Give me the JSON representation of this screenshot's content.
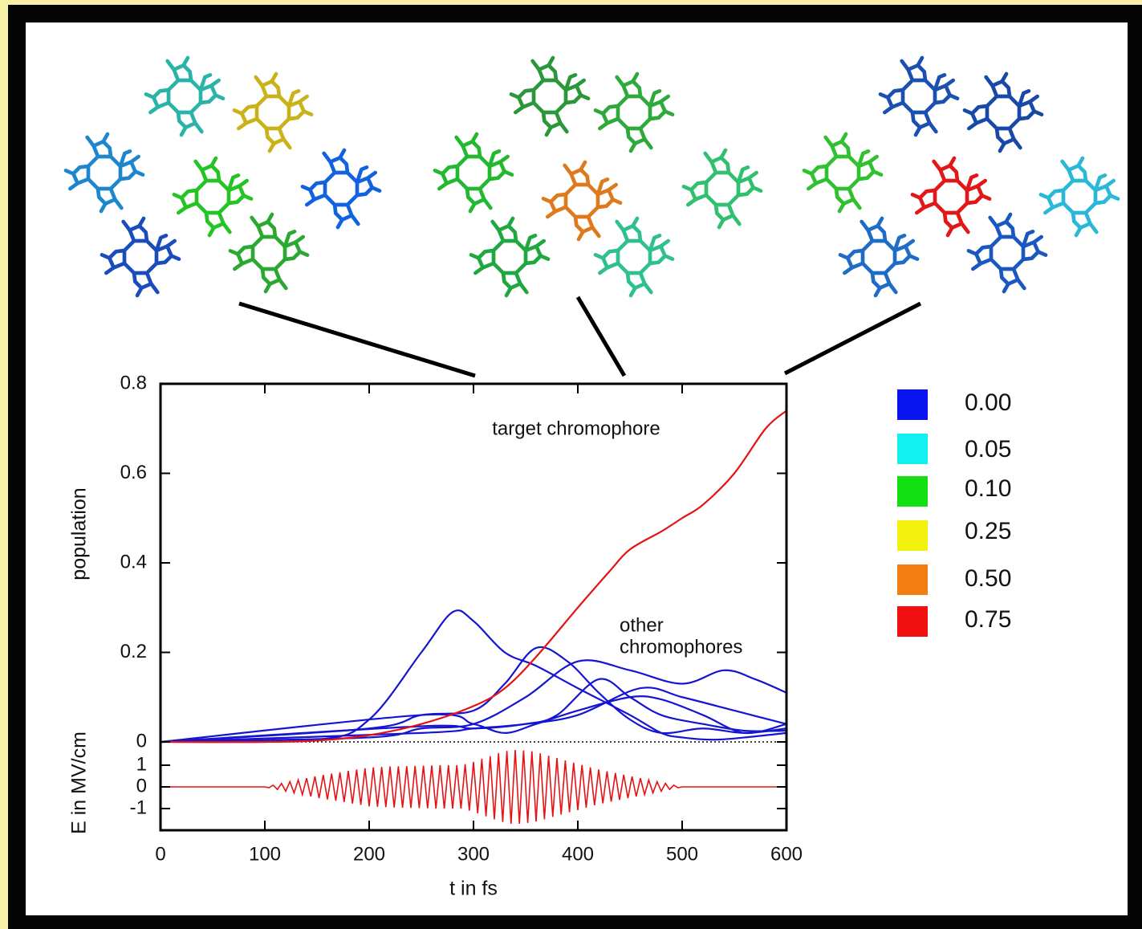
{
  "chart_data": [
    {
      "type": "line",
      "ylabel": "population",
      "xlim": [
        0,
        600
      ],
      "ylim": [
        0,
        0.8
      ],
      "yticks": [
        0,
        0.2,
        0.4,
        0.6,
        0.8
      ],
      "annotations": [
        {
          "lines": [
            "target chromophore"
          ]
        },
        {
          "lines": [
            "other",
            "chromophores"
          ]
        }
      ],
      "color_scale": [
        {
          "value": 0,
          "label": "0.00",
          "color": "#0a14f0"
        },
        {
          "value": 0.05,
          "label": "0.05",
          "color": "#12f0f0"
        },
        {
          "value": 0.1,
          "label": "0.10",
          "color": "#12e012"
        },
        {
          "value": 0.25,
          "label": "0.25",
          "color": "#f2f20e"
        },
        {
          "value": 0.5,
          "label": "0.50",
          "color": "#f27e12"
        },
        {
          "value": 0.75,
          "label": "0.75",
          "color": "#f01010"
        }
      ],
      "series": [
        {
          "color": "#1414d2",
          "x": [
            0,
            150,
            200,
            250,
            280,
            300,
            330,
            360,
            400,
            450,
            480,
            500,
            530,
            560,
            600
          ],
          "values": [
            0,
            0.005,
            0.05,
            0.2,
            0.29,
            0.27,
            0.2,
            0.17,
            0.12,
            0.06,
            0.02,
            0.01,
            0.005,
            0.01,
            0.02
          ]
        },
        {
          "color": "#1414d2",
          "x": [
            0,
            200,
            250,
            300,
            330,
            360,
            390,
            420,
            450,
            480,
            520,
            560,
            600
          ],
          "values": [
            0,
            0.03,
            0.06,
            0.07,
            0.13,
            0.21,
            0.18,
            0.11,
            0.05,
            0.02,
            0.03,
            0.02,
            0.03
          ]
        },
        {
          "color": "#1414d2",
          "x": [
            0,
            200,
            250,
            300,
            350,
            400,
            450,
            500,
            540,
            570,
            600
          ],
          "values": [
            0,
            0.01,
            0.03,
            0.04,
            0.1,
            0.18,
            0.16,
            0.13,
            0.16,
            0.14,
            0.11
          ]
        },
        {
          "color": "#1414d2",
          "x": [
            0,
            250,
            300,
            350,
            380,
            420,
            450,
            480,
            520,
            560,
            600
          ],
          "values": [
            0,
            0.035,
            0.03,
            0.04,
            0.06,
            0.14,
            0.1,
            0.06,
            0.04,
            0.025,
            0.025
          ]
        },
        {
          "color": "#1414d2",
          "x": [
            0,
            250,
            300,
            330,
            360,
            400,
            450,
            480,
            520,
            560,
            600
          ],
          "values": [
            0,
            0.06,
            0.04,
            0.02,
            0.04,
            0.07,
            0.1,
            0.095,
            0.06,
            0.02,
            0.04
          ]
        },
        {
          "color": "#1414d2",
          "x": [
            0,
            250,
            300,
            350,
            400,
            460,
            500,
            550,
            600
          ],
          "values": [
            0,
            0.02,
            0.03,
            0.04,
            0.06,
            0.12,
            0.1,
            0.07,
            0.04
          ]
        },
        {
          "color": "#e41414",
          "x": [
            0,
            100,
            150,
            200,
            250,
            300,
            330,
            360,
            400,
            430,
            450,
            480,
            500,
            520,
            550,
            580,
            600
          ],
          "values": [
            0,
            0,
            0.003,
            0.015,
            0.04,
            0.08,
            0.12,
            0.19,
            0.3,
            0.38,
            0.43,
            0.47,
            0.5,
            0.53,
            0.6,
            0.7,
            0.74
          ]
        }
      ]
    },
    {
      "type": "line",
      "xlabel": "t in fs",
      "ylabel": "E in MV/cm",
      "xlim": [
        0,
        600
      ],
      "xticks": [
        0,
        100,
        200,
        300,
        400,
        500,
        600
      ],
      "ylim": [
        -2,
        2
      ],
      "yticks": [
        -1,
        0,
        1
      ],
      "series": [
        {
          "color": "#e41414",
          "x": [
            0,
            100,
            104,
            108,
            112,
            116,
            120,
            124,
            128,
            132,
            136,
            140,
            144,
            148,
            152,
            156,
            160,
            164,
            168,
            172,
            176,
            180,
            184,
            188,
            192,
            196,
            200,
            204,
            208,
            212,
            216,
            220,
            224,
            228,
            232,
            236,
            240,
            244,
            248,
            252,
            256,
            260,
            264,
            268,
            272,
            276,
            280,
            284,
            288,
            292,
            296,
            300,
            304,
            308,
            312,
            316,
            320,
            324,
            328,
            332,
            336,
            340,
            344,
            348,
            352,
            356,
            360,
            364,
            368,
            372,
            376,
            380,
            384,
            388,
            392,
            396,
            400,
            404,
            408,
            412,
            416,
            420,
            424,
            428,
            432,
            436,
            440,
            444,
            448,
            452,
            456,
            460,
            464,
            468,
            472,
            476,
            480,
            484,
            488,
            492,
            496,
            500,
            600
          ],
          "values": [
            0,
            0,
            -0.04,
            0.08,
            -0.12,
            0.16,
            -0.2,
            0.24,
            -0.28,
            0.32,
            -0.36,
            0.4,
            -0.44,
            0.48,
            -0.52,
            0.55,
            -0.58,
            0.61,
            -0.64,
            0.67,
            -0.7,
            0.74,
            -0.77,
            0.8,
            -0.83,
            0.86,
            -0.9,
            0.9,
            -0.92,
            0.92,
            -0.93,
            0.94,
            -0.95,
            0.95,
            -0.96,
            0.96,
            -0.97,
            0.97,
            -0.98,
            0.98,
            -0.99,
            0.99,
            -1,
            1,
            -1,
            1,
            -1,
            1,
            -1,
            1.05,
            -1.1,
            1.15,
            -1.22,
            1.3,
            -1.36,
            1.42,
            -1.5,
            1.56,
            -1.62,
            1.66,
            -1.7,
            1.7,
            -1.7,
            1.68,
            -1.66,
            1.64,
            -1.6,
            1.55,
            -1.5,
            1.44,
            -1.38,
            1.33,
            -1.28,
            1.22,
            -1.17,
            1.12,
            -1.07,
            1.01,
            -0.96,
            0.9,
            -0.85,
            0.8,
            -0.76,
            0.72,
            -0.68,
            0.64,
            -0.6,
            0.56,
            -0.52,
            0.48,
            -0.44,
            0.4,
            -0.36,
            0.32,
            -0.28,
            0.24,
            -0.2,
            0.16,
            -0.12,
            0.08,
            -0.04,
            0,
            0
          ]
        }
      ]
    }
  ]
}
